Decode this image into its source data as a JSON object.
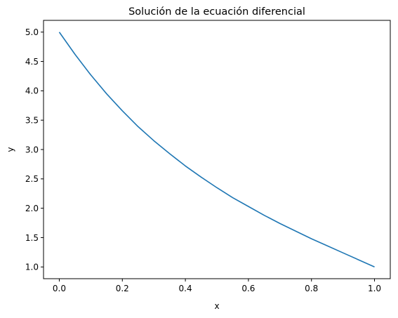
{
  "chart_data": {
    "type": "line",
    "title": "Solución de la ecuación diferencial",
    "xlabel": "x",
    "ylabel": "y",
    "xlim": [
      -0.05,
      1.05
    ],
    "ylim": [
      0.8,
      5.2
    ],
    "xticks": [
      0.0,
      0.2,
      0.4,
      0.6,
      0.8,
      1.0
    ],
    "xtick_labels": [
      "0.0",
      "0.2",
      "0.4",
      "0.6",
      "0.8",
      "1.0"
    ],
    "yticks": [
      1.0,
      1.5,
      2.0,
      2.5,
      3.0,
      3.5,
      4.0,
      4.5,
      5.0
    ],
    "ytick_labels": [
      "1.0",
      "1.5",
      "2.0",
      "2.5",
      "3.0",
      "3.5",
      "4.0",
      "4.5",
      "5.0"
    ],
    "grid": false,
    "series": [
      {
        "color": "#1f77b4",
        "x": [
          0.0,
          0.05,
          0.1,
          0.15,
          0.2,
          0.25,
          0.3,
          0.35,
          0.4,
          0.45,
          0.5,
          0.55,
          0.6,
          0.65,
          0.7,
          0.75,
          0.8,
          0.85,
          0.9,
          0.95,
          1.0
        ],
        "y": [
          5.0,
          4.62,
          4.27,
          3.95,
          3.66,
          3.39,
          3.15,
          2.93,
          2.72,
          2.53,
          2.35,
          2.18,
          2.03,
          1.88,
          1.74,
          1.61,
          1.48,
          1.36,
          1.24,
          1.12,
          1.0
        ]
      }
    ]
  }
}
